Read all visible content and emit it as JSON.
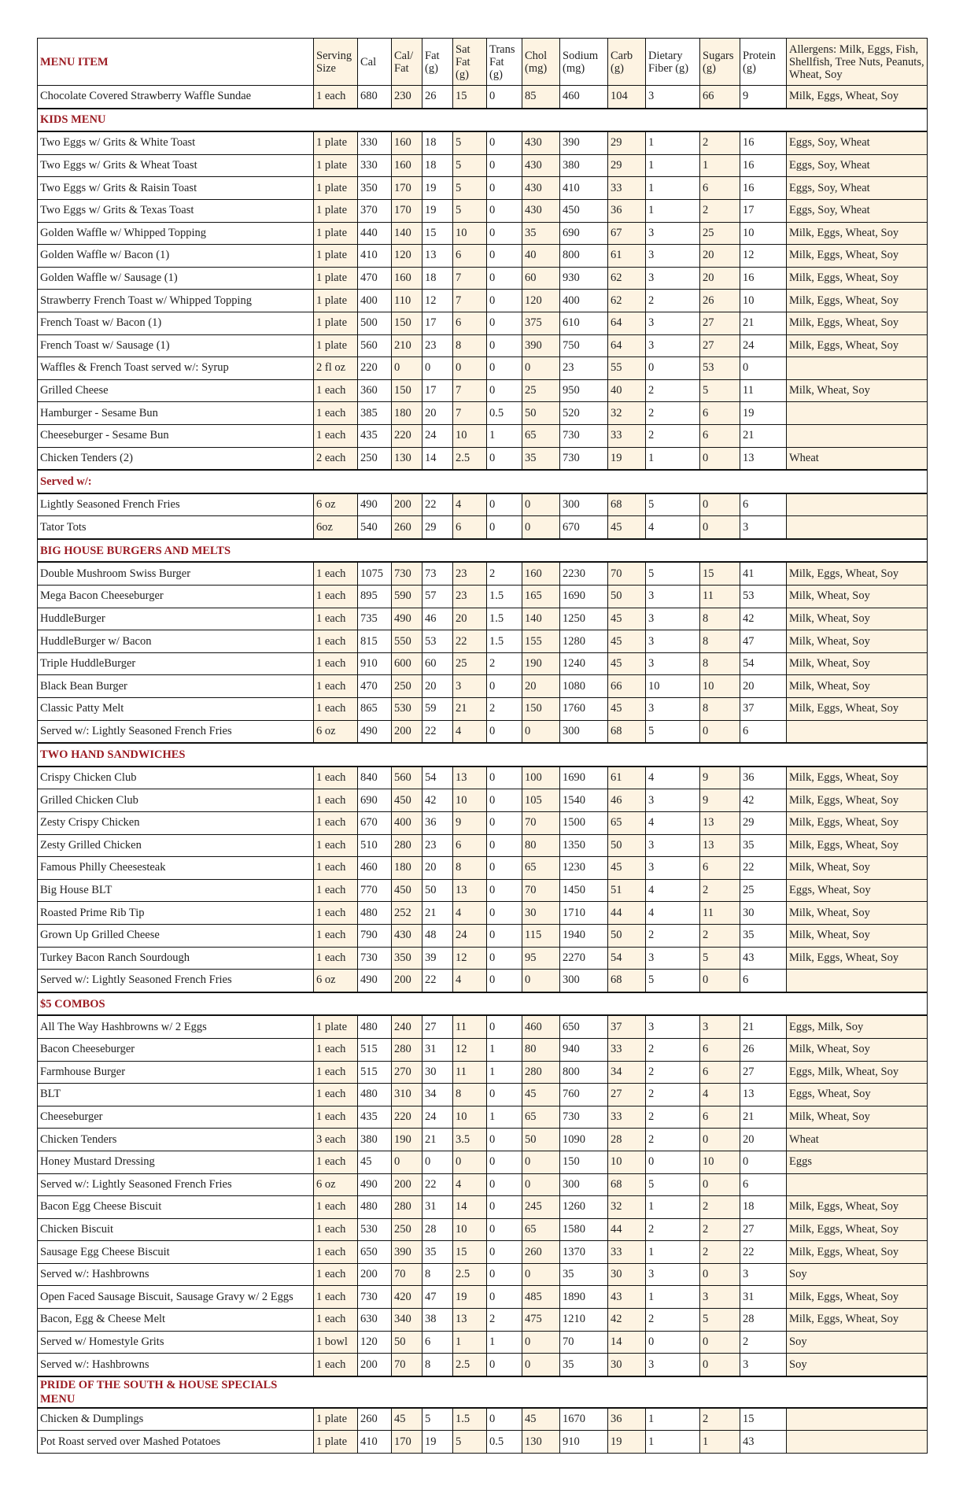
{
  "colors": {
    "section_title": "#9b1b22",
    "shaded_column": "#fdf3e2",
    "border": "#111111"
  },
  "headers": [
    "MENU ITEM",
    "Serving Size",
    "Cal",
    "Cal/ Fat",
    "Fat (g)",
    "Sat Fat (g)",
    "Trans Fat (g)",
    "Chol (mg)",
    "Sodium (mg)",
    "Carb (g)",
    "Dietary Fiber (g)",
    "Sugars (g)",
    "Protein (g)",
    "Allergens: Milk, Eggs, Fish, Shellfish, Tree Nuts, Peanuts, Wheat, Soy"
  ],
  "rows": [
    {
      "cells": [
        "Chocolate Covered Strawberry Waffle Sundae",
        "1 each",
        "680",
        "230",
        "26",
        "15",
        "0",
        "85",
        "460",
        "104",
        "3",
        "66",
        "9",
        "Milk, Eggs, Wheat, Soy"
      ]
    },
    {
      "section": "KIDS MENU"
    },
    {
      "cells": [
        "Two Eggs w/ Grits & White Toast",
        "1 plate",
        "330",
        "160",
        "18",
        "5",
        "0",
        "430",
        "390",
        "29",
        "1",
        "2",
        "16",
        "Eggs, Soy, Wheat"
      ]
    },
    {
      "cells": [
        "Two Eggs w/ Grits & Wheat Toast",
        "1 plate",
        "330",
        "160",
        "18",
        "5",
        "0",
        "430",
        "380",
        "29",
        "1",
        "1",
        "16",
        "Eggs, Soy, Wheat"
      ]
    },
    {
      "cells": [
        "Two Eggs w/ Grits & Raisin Toast",
        "1 plate",
        "350",
        "170",
        "19",
        "5",
        "0",
        "430",
        "410",
        "33",
        "1",
        "6",
        "16",
        "Eggs, Soy, Wheat"
      ]
    },
    {
      "cells": [
        "Two Eggs w/ Grits & Texas Toast",
        "1 plate",
        "370",
        "170",
        "19",
        "5",
        "0",
        "430",
        "450",
        "36",
        "1",
        "2",
        "17",
        "Eggs, Soy, Wheat"
      ]
    },
    {
      "cells": [
        "Golden Waffle w/ Whipped Topping",
        "1 plate",
        "440",
        "140",
        "15",
        "10",
        "0",
        "35",
        "690",
        "67",
        "3",
        "25",
        "10",
        "Milk, Eggs, Wheat, Soy"
      ]
    },
    {
      "cells": [
        "Golden Waffle w/ Bacon (1)",
        "1 plate",
        "410",
        "120",
        "13",
        "6",
        "0",
        "40",
        "800",
        "61",
        "3",
        "20",
        "12",
        "Milk, Eggs, Wheat, Soy"
      ]
    },
    {
      "cells": [
        "Golden Waffle w/ Sausage (1)",
        "1 plate",
        "470",
        "160",
        "18",
        "7",
        "0",
        "60",
        "930",
        "62",
        "3",
        "20",
        "16",
        "Milk, Eggs, Wheat, Soy"
      ]
    },
    {
      "cells": [
        "Strawberry French Toast w/ Whipped Topping",
        "1 plate",
        "400",
        "110",
        "12",
        "7",
        "0",
        "120",
        "400",
        "62",
        "2",
        "26",
        "10",
        "Milk, Eggs, Wheat, Soy"
      ]
    },
    {
      "cells": [
        "French Toast w/ Bacon (1)",
        "1 plate",
        "500",
        "150",
        "17",
        "6",
        "0",
        "375",
        "610",
        "64",
        "3",
        "27",
        "21",
        "Milk, Eggs, Wheat, Soy"
      ]
    },
    {
      "cells": [
        "French Toast w/ Sausage (1)",
        "1 plate",
        "560",
        "210",
        "23",
        "8",
        "0",
        "390",
        "750",
        "64",
        "3",
        "27",
        "24",
        "Milk, Eggs, Wheat, Soy"
      ]
    },
    {
      "cells": [
        "Waffles & French Toast served w/: Syrup",
        "2 fl oz",
        "220",
        "0",
        "0",
        "0",
        "0",
        "0",
        "23",
        "55",
        "0",
        "53",
        "0",
        ""
      ]
    },
    {
      "cells": [
        "Grilled Cheese",
        "1 each",
        "360",
        "150",
        "17",
        "7",
        "0",
        "25",
        "950",
        "40",
        "2",
        "5",
        "11",
        "Milk, Wheat, Soy"
      ]
    },
    {
      "cells": [
        "Hamburger - Sesame Bun",
        "1 each",
        "385",
        "180",
        "20",
        "7",
        "0.5",
        "50",
        "520",
        "32",
        "2",
        "6",
        "19",
        ""
      ]
    },
    {
      "cells": [
        "Cheeseburger - Sesame Bun",
        "1 each",
        "435",
        "220",
        "24",
        "10",
        "1",
        "65",
        "730",
        "33",
        "2",
        "6",
        "21",
        ""
      ]
    },
    {
      "cells": [
        "Chicken Tenders (2)",
        "2 each",
        "250",
        "130",
        "14",
        "2.5",
        "0",
        "35",
        "730",
        "19",
        "1",
        "0",
        "13",
        "Wheat"
      ]
    },
    {
      "section": "Served w/:"
    },
    {
      "cells": [
        "Lightly Seasoned French Fries",
        "6 oz",
        "490",
        "200",
        "22",
        "4",
        "0",
        "0",
        "300",
        "68",
        "5",
        "0",
        "6",
        ""
      ]
    },
    {
      "cells": [
        "Tator Tots",
        "6oz",
        "540",
        "260",
        "29",
        "6",
        "0",
        "0",
        "670",
        "45",
        "4",
        "0",
        "3",
        ""
      ]
    },
    {
      "section": "BIG HOUSE BURGERS AND MELTS"
    },
    {
      "cells": [
        "Double Mushroom Swiss Burger",
        "1 each",
        "1075",
        "730",
        "73",
        "23",
        "2",
        "160",
        "2230",
        "70",
        "5",
        "15",
        "41",
        "Milk, Eggs, Wheat, Soy"
      ]
    },
    {
      "cells": [
        "Mega Bacon Cheeseburger",
        "1 each",
        "895",
        "590",
        "57",
        "23",
        "1.5",
        "165",
        "1690",
        "50",
        "3",
        "11",
        "53",
        "Milk, Wheat, Soy"
      ]
    },
    {
      "cells": [
        "HuddleBurger",
        "1 each",
        "735",
        "490",
        "46",
        "20",
        "1.5",
        "140",
        "1250",
        "45",
        "3",
        "8",
        "42",
        "Milk, Wheat, Soy"
      ]
    },
    {
      "cells": [
        "HuddleBurger w/ Bacon",
        "1 each",
        "815",
        "550",
        "53",
        "22",
        "1.5",
        "155",
        "1280",
        "45",
        "3",
        "8",
        "47",
        "Milk, Wheat, Soy"
      ]
    },
    {
      "cells": [
        "Triple HuddleBurger",
        "1 each",
        "910",
        "600",
        "60",
        "25",
        "2",
        "190",
        "1240",
        "45",
        "3",
        "8",
        "54",
        "Milk, Wheat, Soy"
      ]
    },
    {
      "cells": [
        "Black Bean Burger",
        "1 each",
        "470",
        "250",
        "20",
        "3",
        "0",
        "20",
        "1080",
        "66",
        "10",
        "10",
        "20",
        "Milk, Wheat, Soy"
      ]
    },
    {
      "cells": [
        "Classic Patty Melt",
        "1 each",
        "865",
        "530",
        "59",
        "21",
        "2",
        "150",
        "1760",
        "45",
        "3",
        "8",
        "37",
        "Milk, Eggs, Wheat, Soy"
      ]
    },
    {
      "cells": [
        "Served w/: Lightly Seasoned French Fries",
        "6 oz",
        "490",
        "200",
        "22",
        "4",
        "0",
        "0",
        "300",
        "68",
        "5",
        "0",
        "6",
        ""
      ]
    },
    {
      "section": "TWO HAND SANDWICHES"
    },
    {
      "cells": [
        "Crispy Chicken Club",
        "1 each",
        "840",
        "560",
        "54",
        "13",
        "0",
        "100",
        "1690",
        "61",
        "4",
        "9",
        "36",
        "Milk, Eggs, Wheat, Soy"
      ]
    },
    {
      "cells": [
        "Grilled Chicken Club",
        "1 each",
        "690",
        "450",
        "42",
        "10",
        "0",
        "105",
        "1540",
        "46",
        "3",
        "9",
        "42",
        "Milk, Eggs, Wheat, Soy"
      ]
    },
    {
      "cells": [
        "Zesty Crispy Chicken",
        "1 each",
        "670",
        "400",
        "36",
        "9",
        "0",
        "70",
        "1500",
        "65",
        "4",
        "13",
        "29",
        "Milk, Eggs, Wheat, Soy"
      ]
    },
    {
      "cells": [
        "Zesty Grilled Chicken",
        "1 each",
        "510",
        "280",
        "23",
        "6",
        "0",
        "80",
        "1350",
        "50",
        "3",
        "13",
        "35",
        "Milk, Eggs, Wheat, Soy"
      ]
    },
    {
      "cells": [
        "Famous Philly Cheesesteak",
        "1 each",
        "460",
        "180",
        "20",
        "8",
        "0",
        "65",
        "1230",
        "45",
        "3",
        "6",
        "22",
        "Milk, Wheat, Soy"
      ]
    },
    {
      "cells": [
        "Big House BLT",
        "1 each",
        "770",
        "450",
        "50",
        "13",
        "0",
        "70",
        "1450",
        "51",
        "4",
        "2",
        "25",
        "Eggs, Wheat, Soy"
      ]
    },
    {
      "cells": [
        "Roasted Prime Rib Tip",
        "1 each",
        "480",
        "252",
        "21",
        "4",
        "0",
        "30",
        "1710",
        "44",
        "4",
        "11",
        "30",
        "Milk, Wheat, Soy"
      ]
    },
    {
      "cells": [
        "Grown Up Grilled Cheese",
        "1 each",
        "790",
        "430",
        "48",
        "24",
        "0",
        "115",
        "1940",
        "50",
        "2",
        "2",
        "35",
        "Milk, Wheat, Soy"
      ]
    },
    {
      "cells": [
        "Turkey Bacon Ranch Sourdough",
        "1 each",
        "730",
        "350",
        "39",
        "12",
        "0",
        "95",
        "2270",
        "54",
        "3",
        "5",
        "43",
        "Milk, Eggs, Wheat, Soy"
      ]
    },
    {
      "cells": [
        "Served w/: Lightly Seasoned French Fries",
        "6 oz",
        "490",
        "200",
        "22",
        "4",
        "0",
        "0",
        "300",
        "68",
        "5",
        "0",
        "6",
        ""
      ]
    },
    {
      "section": "$5 COMBOS"
    },
    {
      "cells": [
        "All The Way Hashbrowns w/ 2 Eggs",
        "1 plate",
        "480",
        "240",
        "27",
        "11",
        "0",
        "460",
        "650",
        "37",
        "3",
        "3",
        "21",
        "Eggs, Milk, Soy"
      ]
    },
    {
      "cells": [
        "Bacon Cheeseburger",
        "1 each",
        "515",
        "280",
        "31",
        "12",
        "1",
        "80",
        "940",
        "33",
        "2",
        "6",
        "26",
        "Milk, Wheat, Soy"
      ]
    },
    {
      "cells": [
        "Farmhouse Burger",
        "1 each",
        "515",
        "270",
        "30",
        "11",
        "1",
        "280",
        "800",
        "34",
        "2",
        "6",
        "27",
        "Eggs, Milk, Wheat, Soy"
      ]
    },
    {
      "cells": [
        "BLT",
        "1 each",
        "480",
        "310",
        "34",
        "8",
        "0",
        "45",
        "760",
        "27",
        "2",
        "4",
        "13",
        "Eggs, Wheat, Soy"
      ]
    },
    {
      "cells": [
        "Cheeseburger",
        "1 each",
        "435",
        "220",
        "24",
        "10",
        "1",
        "65",
        "730",
        "33",
        "2",
        "6",
        "21",
        "Milk, Wheat, Soy"
      ]
    },
    {
      "cells": [
        "Chicken Tenders",
        "3 each",
        "380",
        "190",
        "21",
        "3.5",
        "0",
        "50",
        "1090",
        "28",
        "2",
        "0",
        "20",
        "Wheat"
      ]
    },
    {
      "cells": [
        "Honey Mustard Dressing",
        "1 each",
        "45",
        "0",
        "0",
        "0",
        "0",
        "0",
        "150",
        "10",
        "0",
        "10",
        "0",
        "Eggs"
      ]
    },
    {
      "cells": [
        "Served w/: Lightly Seasoned French Fries",
        "6 oz",
        "490",
        "200",
        "22",
        "4",
        "0",
        "0",
        "300",
        "68",
        "5",
        "0",
        "6",
        ""
      ]
    },
    {
      "cells": [
        "Bacon Egg Cheese Biscuit",
        "1 each",
        "480",
        "280",
        "31",
        "14",
        "0",
        "245",
        "1260",
        "32",
        "1",
        "2",
        "18",
        "Milk, Eggs, Wheat, Soy"
      ]
    },
    {
      "cells": [
        "Chicken Biscuit",
        "1 each",
        "530",
        "250",
        "28",
        "10",
        "0",
        "65",
        "1580",
        "44",
        "2",
        "2",
        "27",
        "Milk, Eggs, Wheat, Soy"
      ]
    },
    {
      "cells": [
        "Sausage Egg Cheese Biscuit",
        "1 each",
        "650",
        "390",
        "35",
        "15",
        "0",
        "260",
        "1370",
        "33",
        "1",
        "2",
        "22",
        "Milk, Eggs, Wheat, Soy"
      ]
    },
    {
      "cells": [
        "Served w/: Hashbrowns",
        "1 each",
        "200",
        "70",
        "8",
        "2.5",
        "0",
        "0",
        "35",
        "30",
        "3",
        "0",
        "3",
        "Soy"
      ]
    },
    {
      "cells": [
        "Open Faced Sausage Biscuit, Sausage Gravy w/ 2 Eggs",
        "1 each",
        "730",
        "420",
        "47",
        "19",
        "0",
        "485",
        "1890",
        "43",
        "1",
        "3",
        "31",
        "Milk, Eggs, Wheat, Soy"
      ]
    },
    {
      "cells": [
        "Bacon, Egg & Cheese Melt",
        "1 each",
        "630",
        "340",
        "38",
        "13",
        "2",
        "475",
        "1210",
        "42",
        "2",
        "5",
        "28",
        "Milk, Eggs, Wheat, Soy"
      ]
    },
    {
      "cells": [
        "Served w/ Homestyle Grits",
        "1 bowl",
        "120",
        "50",
        "6",
        "1",
        "1",
        "0",
        "70",
        "14",
        "0",
        "0",
        "2",
        "Soy"
      ]
    },
    {
      "cells": [
        "Served w/: Hashbrowns",
        "1 each",
        "200",
        "70",
        "8",
        "2.5",
        "0",
        "0",
        "35",
        "30",
        "3",
        "0",
        "3",
        "Soy"
      ]
    },
    {
      "section": "PRIDE OF THE SOUTH & HOUSE SPECIALS MENU",
      "tall": true
    },
    {
      "cells": [
        "Chicken & Dumplings",
        "1 plate",
        "260",
        "45",
        "5",
        "1.5",
        "0",
        "45",
        "1670",
        "36",
        "1",
        "2",
        "15",
        ""
      ]
    },
    {
      "cells": [
        "Pot Roast served over Mashed Potatoes",
        "1 plate",
        "410",
        "170",
        "19",
        "5",
        "0.5",
        "130",
        "910",
        "19",
        "1",
        "1",
        "43",
        ""
      ]
    }
  ]
}
